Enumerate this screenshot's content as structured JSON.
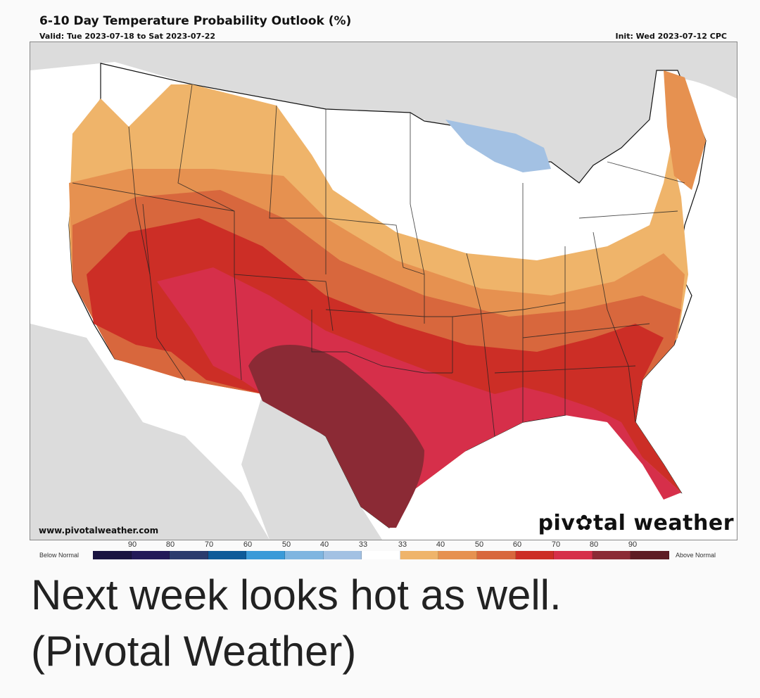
{
  "header": {
    "title": "6-10 Day Temperature Probability Outlook (%)",
    "valid": "Valid: Tue 2023-07-18 to Sat 2023-07-22",
    "init": "Init: Wed 2023-07-12 CPC"
  },
  "map": {
    "site_url": "www.pivotalweather.com",
    "brand_prefix": "piv",
    "brand_gear": "✿",
    "brand_suffix": "tal weather",
    "colors": {
      "background_land": "#dcdcdc",
      "water": "#ffffff",
      "near_normal": "#ffffff",
      "below_33": "#a3c1e3",
      "above_33": "#efb46a",
      "above_40": "#e69150",
      "above_50": "#d8673d",
      "above_60": "#cc2e26",
      "above_70": "#d62f4a",
      "above_80": "#8b2a35"
    },
    "regions": [
      {
        "category": "Above 80",
        "area": "West/Central Texas, SE New Mexico"
      },
      {
        "category": "Above 70",
        "area": "Southern Plains, Gulf Coast, Florida, Southwest"
      },
      {
        "category": "Above 60",
        "area": "Great Basin, Southeast, Tennessee Valley"
      },
      {
        "category": "Above 50",
        "area": "Pacific Coast, Central Rockies, Mid-Atlantic"
      },
      {
        "category": "Above 40",
        "area": "Northwest, Central Plains, New England coast"
      },
      {
        "category": "Above 33",
        "area": "Northern Rockies, Ohio Valley"
      },
      {
        "category": "Near Normal",
        "area": "Northern Plains, Great Lakes, Northeast interior"
      },
      {
        "category": "Below 33",
        "area": "Upper Michigan, NE Minnesota"
      }
    ]
  },
  "legend": {
    "below_label": "Below Normal",
    "above_label": "Above Normal",
    "below_ticks": [
      "90",
      "80",
      "70",
      "60",
      "50",
      "40",
      "33"
    ],
    "above_ticks": [
      "33",
      "40",
      "50",
      "60",
      "70",
      "80",
      "90"
    ],
    "below_colors": [
      "#1a1440",
      "#231a58",
      "#2b3b6d",
      "#0d5a99",
      "#3a9ad8",
      "#7fb5e0",
      "#a3c1e3"
    ],
    "near_color": "#ffffff",
    "above_colors": [
      "#efb46a",
      "#e69150",
      "#d8673d",
      "#cc2e26",
      "#d62f4a",
      "#8b2a35",
      "#5e1c24"
    ]
  },
  "caption": {
    "line1": "Next week looks hot as well.",
    "line2": "(Pivotal Weather)"
  }
}
